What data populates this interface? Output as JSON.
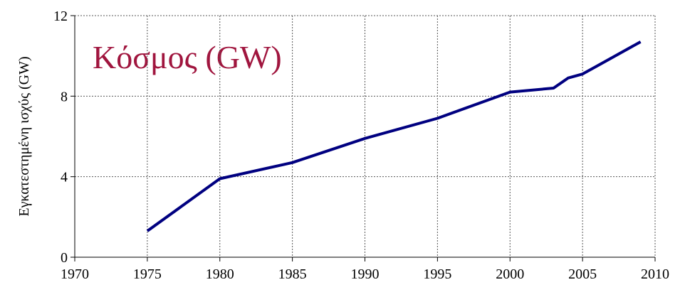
{
  "chart_data": {
    "type": "line",
    "title": "Κόσμος (GW)",
    "y_label": "Εγκατεστημένη ισχύς (GW)",
    "x": [
      1975,
      1980,
      1985,
      1990,
      1995,
      2000,
      2003,
      2004,
      2005,
      2006,
      2009
    ],
    "series": [
      {
        "name": "Κόσμος",
        "color": "#000080",
        "values": [
          1.3,
          3.9,
          4.7,
          5.9,
          6.9,
          8.2,
          8.4,
          8.9,
          9.1,
          9.5,
          10.7
        ]
      }
    ],
    "xlim": [
      1970,
      2010
    ],
    "xticks": [
      1970,
      1975,
      1980,
      1985,
      1990,
      1995,
      2000,
      2005,
      2010
    ],
    "ylim": [
      0,
      12
    ],
    "yticks": [
      0,
      4,
      8,
      12
    ],
    "grid": true,
    "title_color": "#a0153e"
  }
}
